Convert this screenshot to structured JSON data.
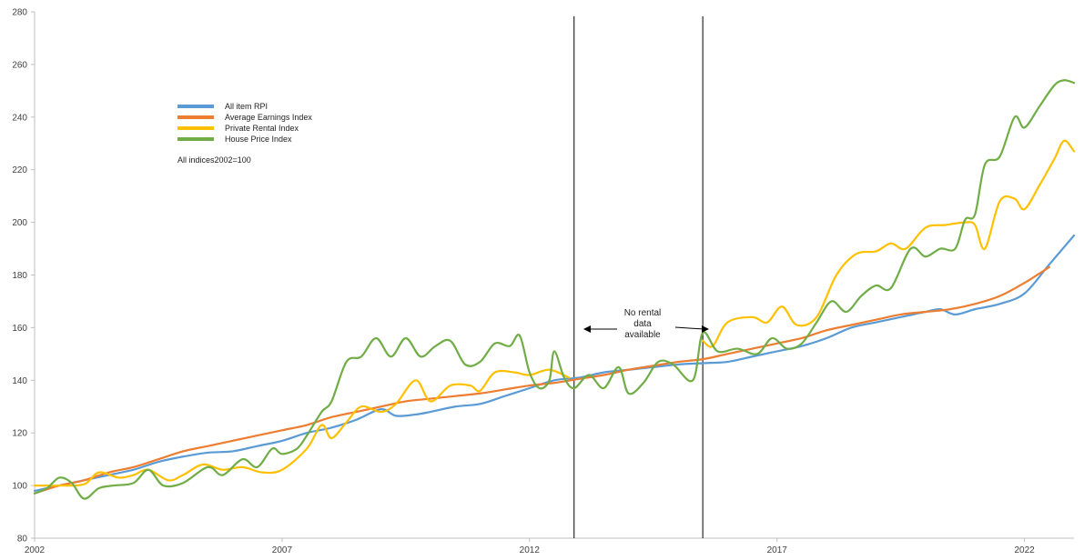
{
  "chart_data": {
    "type": "line",
    "title": "",
    "xlabel": "",
    "ylabel": "",
    "xlim": [
      2002,
      2023
    ],
    "ylim": [
      80,
      280
    ],
    "y_ticks": [
      80,
      100,
      120,
      140,
      160,
      180,
      200,
      220,
      240,
      260,
      280
    ],
    "x_ticks": [
      2002,
      2007,
      2012,
      2017,
      2022
    ],
    "x_tick_labels": [
      "2002",
      "2007",
      "2012",
      "2017",
      "2022"
    ],
    "grid": false,
    "legend_position": "top-left",
    "legend_note": "All indices2002=100",
    "annotation_text": [
      "No rental",
      "data",
      "available"
    ],
    "gap_range": [
      2012.9,
      2015.5
    ],
    "series": [
      {
        "name": "All item RPI",
        "color": "#5b9bd5",
        "points": [
          [
            2002,
            98
          ],
          [
            2002.5,
            100
          ],
          [
            2003,
            102
          ],
          [
            2003.5,
            104
          ],
          [
            2004,
            106
          ],
          [
            2004.5,
            109
          ],
          [
            2005,
            111
          ],
          [
            2005.5,
            112.5
          ],
          [
            2006,
            113
          ],
          [
            2006.5,
            115
          ],
          [
            2007,
            117
          ],
          [
            2007.5,
            120
          ],
          [
            2008,
            122
          ],
          [
            2008.5,
            125
          ],
          [
            2009,
            129
          ],
          [
            2009.3,
            126.5
          ],
          [
            2009.7,
            127
          ],
          [
            2010,
            128
          ],
          [
            2010.5,
            130
          ],
          [
            2011,
            131
          ],
          [
            2011.5,
            134
          ],
          [
            2012,
            137
          ],
          [
            2012.5,
            140
          ],
          [
            2013,
            141
          ],
          [
            2013.5,
            143
          ],
          [
            2014,
            144
          ],
          [
            2014.5,
            145
          ],
          [
            2015,
            146
          ],
          [
            2015.5,
            146.5
          ],
          [
            2016,
            147
          ],
          [
            2016.5,
            149
          ],
          [
            2017,
            151
          ],
          [
            2017.5,
            153
          ],
          [
            2018,
            156
          ],
          [
            2018.5,
            160
          ],
          [
            2019,
            162
          ],
          [
            2019.5,
            164
          ],
          [
            2020,
            166
          ],
          [
            2020.3,
            167
          ],
          [
            2020.6,
            165
          ],
          [
            2021,
            167
          ],
          [
            2021.5,
            169
          ],
          [
            2022,
            173
          ],
          [
            2022.5,
            184
          ],
          [
            2023,
            195
          ]
        ]
      },
      {
        "name": "Average Earnings Index",
        "color": "#ed7d31",
        "points": [
          [
            2002,
            97
          ],
          [
            2002.5,
            100
          ],
          [
            2003,
            102
          ],
          [
            2003.5,
            105
          ],
          [
            2004,
            107
          ],
          [
            2004.5,
            110
          ],
          [
            2005,
            113
          ],
          [
            2005.5,
            115
          ],
          [
            2006,
            117
          ],
          [
            2006.5,
            119
          ],
          [
            2007,
            121
          ],
          [
            2007.5,
            123
          ],
          [
            2008,
            126
          ],
          [
            2008.5,
            128
          ],
          [
            2009,
            130
          ],
          [
            2009.5,
            132
          ],
          [
            2010,
            133
          ],
          [
            2010.5,
            134
          ],
          [
            2011,
            135
          ],
          [
            2011.5,
            136.5
          ],
          [
            2012,
            138
          ],
          [
            2012.5,
            139
          ],
          [
            2013,
            140.5
          ],
          [
            2013.5,
            142
          ],
          [
            2014,
            144
          ],
          [
            2014.5,
            145.5
          ],
          [
            2015,
            147
          ],
          [
            2015.5,
            148
          ],
          [
            2016,
            150
          ],
          [
            2016.5,
            152
          ],
          [
            2017,
            154
          ],
          [
            2017.5,
            156
          ],
          [
            2018,
            159
          ],
          [
            2018.5,
            161
          ],
          [
            2019,
            163
          ],
          [
            2019.5,
            165
          ],
          [
            2020,
            166
          ],
          [
            2020.5,
            167
          ],
          [
            2021,
            169
          ],
          [
            2021.5,
            172
          ],
          [
            2022,
            177
          ],
          [
            2022.5,
            183
          ]
        ]
      },
      {
        "name": "Private Rental Index",
        "color": "#ffc000",
        "points": [
          [
            2002,
            100
          ],
          [
            2002.5,
            100
          ],
          [
            2003,
            100.5
          ],
          [
            2003.3,
            105
          ],
          [
            2003.7,
            103
          ],
          [
            2004,
            104
          ],
          [
            2004.3,
            106
          ],
          [
            2004.7,
            102
          ],
          [
            2005,
            104
          ],
          [
            2005.4,
            108
          ],
          [
            2005.8,
            106
          ],
          [
            2006.2,
            107
          ],
          [
            2006.6,
            105
          ],
          [
            2007,
            106
          ],
          [
            2007.5,
            114
          ],
          [
            2007.8,
            123
          ],
          [
            2008,
            118
          ],
          [
            2008.3,
            124
          ],
          [
            2008.6,
            130
          ],
          [
            2009,
            128
          ],
          [
            2009.3,
            131
          ],
          [
            2009.7,
            140
          ],
          [
            2010,
            132
          ],
          [
            2010.4,
            138
          ],
          [
            2010.8,
            138
          ],
          [
            2011,
            136
          ],
          [
            2011.3,
            143
          ],
          [
            2011.7,
            143
          ],
          [
            2012,
            142
          ],
          [
            2012.4,
            144
          ],
          [
            2012.8,
            141
          ],
          [
            2015.5,
            155
          ],
          [
            2015.7,
            153
          ],
          [
            2016,
            162
          ],
          [
            2016.5,
            164
          ],
          [
            2016.8,
            162
          ],
          [
            2017.1,
            168
          ],
          [
            2017.4,
            161
          ],
          [
            2017.8,
            164
          ],
          [
            2018.2,
            180
          ],
          [
            2018.6,
            188
          ],
          [
            2019,
            189
          ],
          [
            2019.3,
            192
          ],
          [
            2019.6,
            190
          ],
          [
            2020,
            198
          ],
          [
            2020.4,
            199
          ],
          [
            2020.8,
            200
          ],
          [
            2021,
            199
          ],
          [
            2021.2,
            190
          ],
          [
            2021.5,
            208
          ],
          [
            2021.8,
            209
          ],
          [
            2022,
            205
          ],
          [
            2022.3,
            214
          ],
          [
            2022.6,
            224
          ],
          [
            2022.8,
            231
          ],
          [
            2023,
            227
          ]
        ]
      },
      {
        "name": "House Price Index",
        "color": "#70ad47",
        "points": [
          [
            2002,
            97
          ],
          [
            2002.25,
            99
          ],
          [
            2002.5,
            103
          ],
          [
            2002.75,
            101
          ],
          [
            2003,
            95
          ],
          [
            2003.3,
            99
          ],
          [
            2003.6,
            100
          ],
          [
            2004,
            101
          ],
          [
            2004.3,
            106
          ],
          [
            2004.6,
            100
          ],
          [
            2005,
            101
          ],
          [
            2005.5,
            107
          ],
          [
            2005.8,
            104
          ],
          [
            2006.2,
            110
          ],
          [
            2006.5,
            107
          ],
          [
            2006.8,
            114
          ],
          [
            2007,
            112
          ],
          [
            2007.3,
            114
          ],
          [
            2007.5,
            119
          ],
          [
            2007.8,
            128
          ],
          [
            2008,
            132
          ],
          [
            2008.3,
            147
          ],
          [
            2008.6,
            149
          ],
          [
            2008.9,
            156
          ],
          [
            2009.2,
            149
          ],
          [
            2009.5,
            156
          ],
          [
            2009.8,
            149
          ],
          [
            2010.1,
            153
          ],
          [
            2010.4,
            155
          ],
          [
            2010.7,
            146
          ],
          [
            2011,
            147
          ],
          [
            2011.3,
            154
          ],
          [
            2011.6,
            153
          ],
          [
            2011.8,
            157
          ],
          [
            2012,
            143
          ],
          [
            2012.2,
            137
          ],
          [
            2012.4,
            140
          ],
          [
            2012.5,
            151
          ],
          [
            2012.7,
            141
          ],
          [
            2012.9,
            137
          ],
          [
            2013.2,
            142
          ],
          [
            2013.5,
            137
          ],
          [
            2013.8,
            145
          ],
          [
            2014,
            135
          ],
          [
            2014.3,
            139
          ],
          [
            2014.6,
            147
          ],
          [
            2014.9,
            146
          ],
          [
            2015.3,
            140
          ],
          [
            2015.5,
            158
          ],
          [
            2015.8,
            151
          ],
          [
            2016.2,
            152
          ],
          [
            2016.6,
            150
          ],
          [
            2016.9,
            156
          ],
          [
            2017.2,
            152
          ],
          [
            2017.5,
            154
          ],
          [
            2017.8,
            162
          ],
          [
            2018.1,
            170
          ],
          [
            2018.4,
            166
          ],
          [
            2018.7,
            172
          ],
          [
            2019,
            176
          ],
          [
            2019.3,
            175
          ],
          [
            2019.7,
            190
          ],
          [
            2020,
            187
          ],
          [
            2020.3,
            190
          ],
          [
            2020.6,
            190
          ],
          [
            2020.8,
            201
          ],
          [
            2021,
            203
          ],
          [
            2021.2,
            222
          ],
          [
            2021.5,
            225
          ],
          [
            2021.8,
            240
          ],
          [
            2022,
            236
          ],
          [
            2022.3,
            244
          ],
          [
            2022.6,
            252
          ],
          [
            2022.8,
            254
          ],
          [
            2023,
            253
          ]
        ]
      }
    ]
  }
}
